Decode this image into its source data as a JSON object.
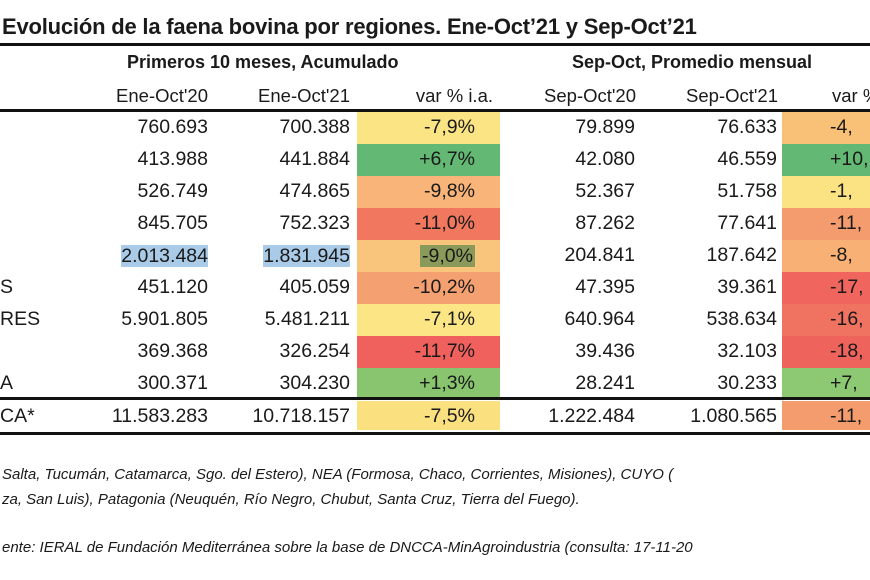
{
  "title": "Evolución de la faena bovina por regiones. Ene-Oct’21 y Sep-Oct’21",
  "group_headers": [
    "Primeros 10 meses, Acumulado",
    "Sep-Oct, Promedio mensual"
  ],
  "column_headers": [
    "Ene-Oct'20",
    "Ene-Oct'21",
    "var % i.a.",
    "Sep-Oct'20",
    "Sep-Oct'21",
    "var %"
  ],
  "rows": [
    {
      "label": "",
      "values": [
        "760.693",
        "700.388",
        "-7,9%",
        "79.899",
        "76.633",
        "-4,"
      ],
      "var_colors": [
        "#fbe483",
        "#f9c078"
      ]
    },
    {
      "label": "",
      "values": [
        "413.988",
        "441.884",
        "+6,7%",
        "42.080",
        "46.559",
        "+10,"
      ],
      "var_colors": [
        "#63b873",
        "#63b873"
      ]
    },
    {
      "label": "",
      "values": [
        "526.749",
        "474.865",
        "-9,8%",
        "52.367",
        "51.758",
        "-1,"
      ],
      "var_colors": [
        "#f9b47a",
        "#fbe383"
      ]
    },
    {
      "label": "",
      "values": [
        "845.705",
        "752.323",
        "-11,0%",
        "87.262",
        "77.641",
        "-11,"
      ],
      "var_colors": [
        "#f2775f",
        "#f59c6e"
      ]
    },
    {
      "label": "",
      "values": [
        "2.013.484",
        "1.831.945",
        "-9,0%",
        "204.841",
        "187.642",
        "-8,"
      ],
      "var_colors": [
        "#f9c57c",
        "#f8b074"
      ],
      "selected": true
    },
    {
      "label": "S",
      "values": [
        "451.120",
        "405.059",
        "-10,2%",
        "47.395",
        "39.361",
        "-17,"
      ],
      "var_colors": [
        "#f5a070",
        "#f0665e"
      ]
    },
    {
      "label": "RES",
      "values": [
        "5.901.805",
        "5.481.211",
        "-7,1%",
        "640.964",
        "538.634",
        "-16,"
      ],
      "var_colors": [
        "#fbe585",
        "#f07260"
      ]
    },
    {
      "label": "",
      "values": [
        "369.368",
        "326.254",
        "-11,7%",
        "39.436",
        "32.103",
        "-18,"
      ],
      "var_colors": [
        "#f0605d",
        "#ef635d"
      ]
    },
    {
      "label": "A",
      "values": [
        "300.371",
        "304.230",
        "+1,3%",
        "28.241",
        "30.233",
        "+7,"
      ],
      "var_colors": [
        "#88c56e",
        "#8cc972"
      ]
    },
    {
      "label": "CA*",
      "values": [
        "11.583.283",
        "10.718.157",
        "-7,5%",
        "1.222.484",
        "1.080.565",
        "-11,"
      ],
      "var_colors": [
        "#fbe080",
        "#f59c6e"
      ]
    }
  ],
  "footnotes": [
    "Salta, Tucumán, Catamarca, Sgo. del Estero), NEA (Formosa, Chaco, Corrientes, Misiones), CUYO (",
    "za, San Luis), Patagonia (Neuquén, Río Negro, Chubut, Santa Cruz, Tierra del Fuego).",
    "ente: IERAL de Fundación Mediterránea sobre la base de DNCCA-MinAgroindustria (consulta: 17-11-20"
  ],
  "colors": {
    "selection": "#a9cbe8",
    "selection_dark": "#8a9a5b"
  }
}
